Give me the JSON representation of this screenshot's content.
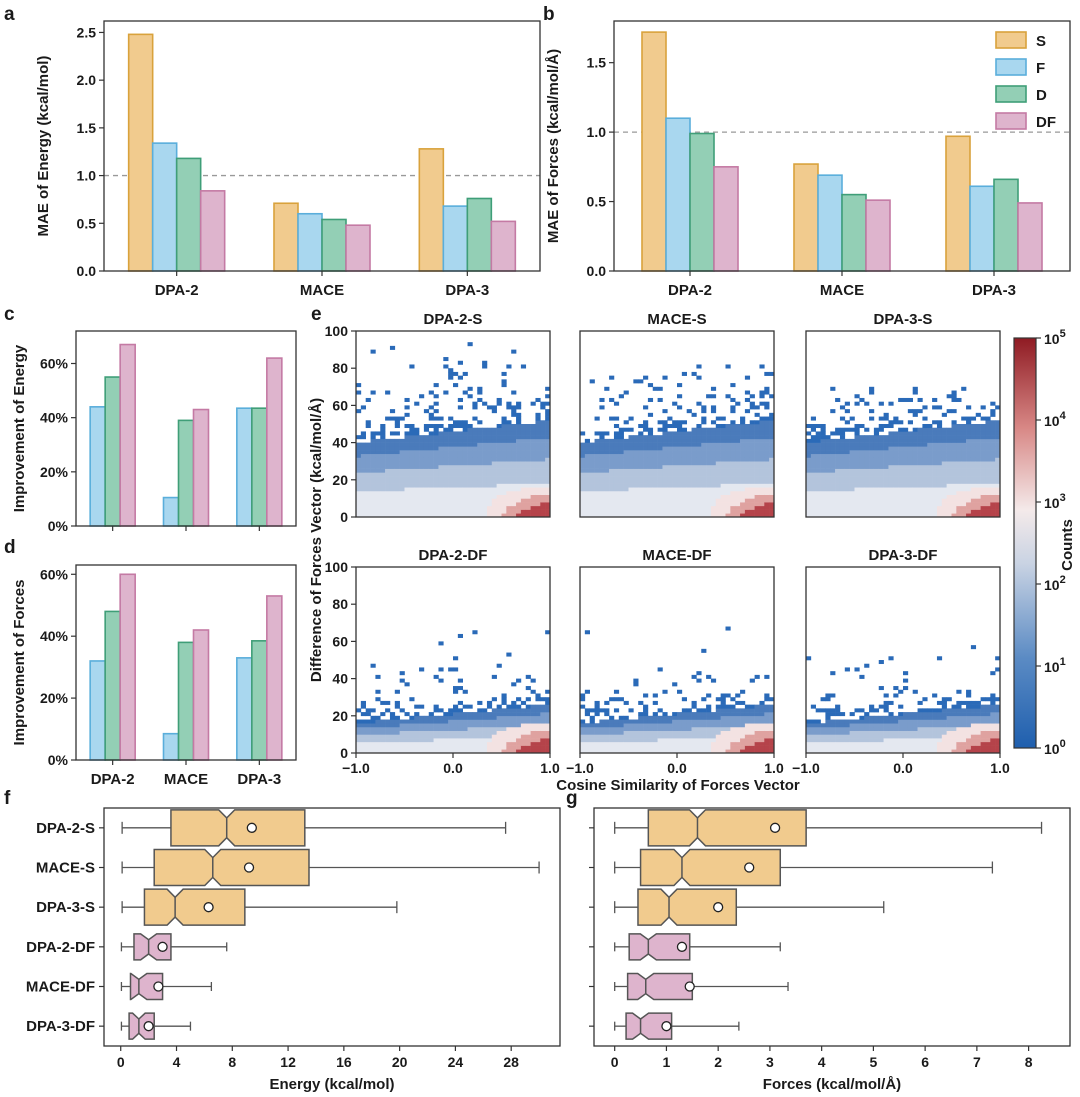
{
  "colors": {
    "S": {
      "fill": "#f1cb8e",
      "stroke": "#d9a23c"
    },
    "F": {
      "fill": "#a9d7ef",
      "stroke": "#5aaedb"
    },
    "D": {
      "fill": "#93cfb5",
      "stroke": "#3f9e78"
    },
    "DF": {
      "fill": "#deb4cd",
      "stroke": "#c47aa4"
    },
    "axis": "#333333",
    "refline": "#999999"
  },
  "panel_labels": [
    "a",
    "b",
    "c",
    "d",
    "e",
    "f",
    "g"
  ],
  "chart_data": [
    {
      "panel": "a",
      "type": "bar",
      "categories": [
        "DPA-2",
        "MACE",
        "DPA-3"
      ],
      "series": [
        {
          "key": "S",
          "values": [
            2.48,
            0.71,
            1.28
          ]
        },
        {
          "key": "F",
          "values": [
            1.34,
            0.6,
            0.68
          ]
        },
        {
          "key": "D",
          "values": [
            1.18,
            0.54,
            0.76
          ]
        },
        {
          "key": "DF",
          "values": [
            0.84,
            0.48,
            0.52
          ]
        }
      ],
      "ylabel": "MAE of Energy (kcal/mol)",
      "ylim": [
        0,
        2.62
      ],
      "yticks": [
        0.0,
        0.5,
        1.0,
        1.5,
        2.0,
        2.5
      ],
      "ytick_labels": [
        "0.0",
        "0.5",
        "1.0",
        "1.5",
        "2.0",
        "2.5"
      ],
      "reference_line": 1.0
    },
    {
      "panel": "b",
      "type": "bar",
      "categories": [
        "DPA-2",
        "MACE",
        "DPA-3"
      ],
      "series": [
        {
          "key": "S",
          "name": "S",
          "values": [
            1.72,
            0.77,
            0.97
          ]
        },
        {
          "key": "F",
          "name": "F",
          "values": [
            1.1,
            0.69,
            0.61
          ]
        },
        {
          "key": "D",
          "name": "D",
          "values": [
            0.99,
            0.55,
            0.66
          ]
        },
        {
          "key": "DF",
          "name": "DF",
          "values": [
            0.75,
            0.51,
            0.49
          ]
        }
      ],
      "ylabel": "MAE of Forces (kcal/mol/Å)",
      "ylim": [
        0,
        1.8
      ],
      "yticks": [
        0.0,
        0.5,
        1.0,
        1.5
      ],
      "ytick_labels": [
        "0.0",
        "0.5",
        "1.0",
        "1.5"
      ],
      "reference_line": 1.0,
      "legend": "top-right"
    },
    {
      "panel": "c",
      "type": "bar",
      "categories": [
        "DPA-2",
        "MACE",
        "DPA-3"
      ],
      "series": [
        {
          "key": "F",
          "values": [
            44,
            10.5,
            43.5
          ]
        },
        {
          "key": "D",
          "values": [
            55,
            39,
            43.5
          ]
        },
        {
          "key": "DF",
          "values": [
            67,
            43,
            62
          ]
        }
      ],
      "ylabel": "Improvement of Energy",
      "ylim": [
        0,
        72
      ],
      "yticks": [
        0,
        20,
        40,
        60
      ],
      "ytick_labels": [
        "0%",
        "20%",
        "40%",
        "60%"
      ]
    },
    {
      "panel": "d",
      "type": "bar",
      "categories": [
        "DPA-2",
        "MACE",
        "DPA-3"
      ],
      "series": [
        {
          "key": "F",
          "values": [
            32,
            8.5,
            33
          ]
        },
        {
          "key": "D",
          "values": [
            48,
            38,
            38.5
          ]
        },
        {
          "key": "DF",
          "values": [
            60,
            42,
            53
          ]
        }
      ],
      "ylabel": "Improvement of Forces",
      "ylim": [
        0,
        63
      ],
      "yticks": [
        0,
        20,
        40,
        60
      ],
      "ytick_labels": [
        "0%",
        "20%",
        "40%",
        "60%"
      ]
    },
    {
      "panel": "e",
      "type": "heatmap",
      "subplots": [
        {
          "title": "DPA-2-S",
          "max_diff": 95
        },
        {
          "title": "MACE-S",
          "max_diff": 82
        },
        {
          "title": "DPA-3-S",
          "max_diff": 70
        },
        {
          "title": "DPA-2-DF",
          "max_diff": 68
        },
        {
          "title": "MACE-DF",
          "max_diff": 72
        },
        {
          "title": "DPA-3-DF",
          "max_diff": 67
        }
      ],
      "xlabel": "Cosine Similarity of Forces Vector",
      "ylabel": "Difference of Forces Vector (kcal/mol/Å)",
      "xlim": [
        -1.0,
        1.0
      ],
      "ylim": [
        0,
        100
      ],
      "xticks": [
        -1.0,
        0.0,
        1.0
      ],
      "xtick_labels": [
        "−1.0",
        "0.0",
        "1.0"
      ],
      "yticks": [
        0,
        20,
        40,
        60,
        80,
        100
      ],
      "ytick_labels": [
        "0",
        "20",
        "40",
        "60",
        "80",
        "100"
      ],
      "colorbar": {
        "label": "Counts",
        "scale": "log",
        "range": [
          1,
          100000
        ],
        "tick_base": "10",
        "tick_exponents": [
          "0",
          "1",
          "2",
          "3",
          "4",
          "5"
        ]
      }
    },
    {
      "panel": "f",
      "type": "box",
      "orientation": "horizontal",
      "categories": [
        "DPA-2-S",
        "MACE-S",
        "DPA-3-S",
        "DPA-2-DF",
        "MACE-DF",
        "DPA-3-DF"
      ],
      "boxes": [
        {
          "group": "S",
          "min": 0.1,
          "q1": 3.6,
          "median": 7.6,
          "q3": 13.2,
          "max": 27.6,
          "mean": 9.4
        },
        {
          "group": "S",
          "min": 0.1,
          "q1": 2.4,
          "median": 6.6,
          "q3": 13.5,
          "max": 30.0,
          "mean": 9.2
        },
        {
          "group": "S",
          "min": 0.1,
          "q1": 1.7,
          "median": 3.9,
          "q3": 8.9,
          "max": 19.8,
          "mean": 6.3
        },
        {
          "group": "DF",
          "min": 0.05,
          "q1": 0.95,
          "median": 2.0,
          "q3": 3.6,
          "max": 7.6,
          "mean": 3.0
        },
        {
          "group": "DF",
          "min": 0.05,
          "q1": 0.7,
          "median": 1.3,
          "q3": 3.0,
          "max": 6.5,
          "mean": 2.7
        },
        {
          "group": "DF",
          "min": 0.05,
          "q1": 0.6,
          "median": 1.3,
          "q3": 2.4,
          "max": 5.0,
          "mean": 2.0
        }
      ],
      "xlabel": "Energy (kcal/mol)",
      "xlim": [
        -1.2,
        31.5
      ],
      "xticks": [
        0,
        4,
        8,
        12,
        16,
        20,
        24,
        28
      ],
      "xtick_labels": [
        "0",
        "4",
        "8",
        "12",
        "16",
        "20",
        "24",
        "28"
      ]
    },
    {
      "panel": "g",
      "type": "box",
      "orientation": "horizontal",
      "categories": [
        "DPA-2-S",
        "MACE-S",
        "DPA-3-S",
        "DPA-2-DF",
        "MACE-DF",
        "DPA-3-DF"
      ],
      "boxes": [
        {
          "group": "S",
          "min": 0.0,
          "q1": 0.65,
          "median": 1.6,
          "q3": 3.7,
          "max": 8.25,
          "mean": 3.1
        },
        {
          "group": "S",
          "min": 0.0,
          "q1": 0.5,
          "median": 1.3,
          "q3": 3.2,
          "max": 7.3,
          "mean": 2.6
        },
        {
          "group": "S",
          "min": 0.0,
          "q1": 0.45,
          "median": 1.05,
          "q3": 2.35,
          "max": 5.2,
          "mean": 2.0
        },
        {
          "group": "DF",
          "min": 0.0,
          "q1": 0.28,
          "median": 0.65,
          "q3": 1.45,
          "max": 3.2,
          "mean": 1.3
        },
        {
          "group": "DF",
          "min": 0.0,
          "q1": 0.25,
          "median": 0.6,
          "q3": 1.5,
          "max": 3.35,
          "mean": 1.45
        },
        {
          "group": "DF",
          "min": 0.0,
          "q1": 0.22,
          "median": 0.5,
          "q3": 1.1,
          "max": 2.4,
          "mean": 1.0
        }
      ],
      "xlabel": "Forces (kcal/mol/Å)",
      "xlim": [
        -0.4,
        8.8
      ],
      "xticks": [
        0,
        1,
        2,
        3,
        4,
        5,
        6,
        7,
        8
      ],
      "xtick_labels": [
        "0",
        "1",
        "2",
        "3",
        "4",
        "5",
        "6",
        "7",
        "8"
      ]
    }
  ]
}
